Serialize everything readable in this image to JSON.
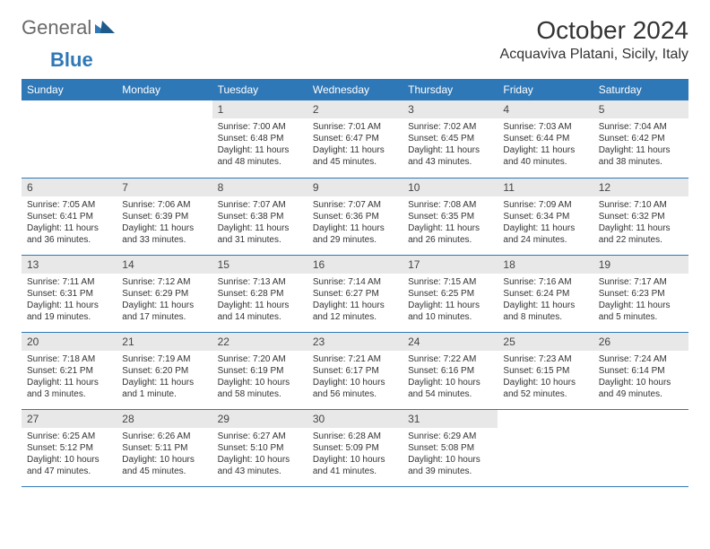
{
  "brand": {
    "part1": "General",
    "part2": "Blue"
  },
  "title": "October 2024",
  "location": "Acquaviva Platani, Sicily, Italy",
  "colors": {
    "header_bg": "#2f78b7",
    "header_text": "#ffffff",
    "daynum_bg": "#e8e8e8",
    "border": "#2f78b7",
    "text": "#333333",
    "logo_gray": "#6a6a6a",
    "logo_blue": "#2f78b7"
  },
  "weekdays": [
    "Sunday",
    "Monday",
    "Tuesday",
    "Wednesday",
    "Thursday",
    "Friday",
    "Saturday"
  ],
  "weeks": [
    [
      null,
      null,
      {
        "n": "1",
        "r": "Sunrise: 7:00 AM",
        "s": "Sunset: 6:48 PM",
        "d1": "Daylight: 11 hours",
        "d2": "and 48 minutes."
      },
      {
        "n": "2",
        "r": "Sunrise: 7:01 AM",
        "s": "Sunset: 6:47 PM",
        "d1": "Daylight: 11 hours",
        "d2": "and 45 minutes."
      },
      {
        "n": "3",
        "r": "Sunrise: 7:02 AM",
        "s": "Sunset: 6:45 PM",
        "d1": "Daylight: 11 hours",
        "d2": "and 43 minutes."
      },
      {
        "n": "4",
        "r": "Sunrise: 7:03 AM",
        "s": "Sunset: 6:44 PM",
        "d1": "Daylight: 11 hours",
        "d2": "and 40 minutes."
      },
      {
        "n": "5",
        "r": "Sunrise: 7:04 AM",
        "s": "Sunset: 6:42 PM",
        "d1": "Daylight: 11 hours",
        "d2": "and 38 minutes."
      }
    ],
    [
      {
        "n": "6",
        "r": "Sunrise: 7:05 AM",
        "s": "Sunset: 6:41 PM",
        "d1": "Daylight: 11 hours",
        "d2": "and 36 minutes."
      },
      {
        "n": "7",
        "r": "Sunrise: 7:06 AM",
        "s": "Sunset: 6:39 PM",
        "d1": "Daylight: 11 hours",
        "d2": "and 33 minutes."
      },
      {
        "n": "8",
        "r": "Sunrise: 7:07 AM",
        "s": "Sunset: 6:38 PM",
        "d1": "Daylight: 11 hours",
        "d2": "and 31 minutes."
      },
      {
        "n": "9",
        "r": "Sunrise: 7:07 AM",
        "s": "Sunset: 6:36 PM",
        "d1": "Daylight: 11 hours",
        "d2": "and 29 minutes."
      },
      {
        "n": "10",
        "r": "Sunrise: 7:08 AM",
        "s": "Sunset: 6:35 PM",
        "d1": "Daylight: 11 hours",
        "d2": "and 26 minutes."
      },
      {
        "n": "11",
        "r": "Sunrise: 7:09 AM",
        "s": "Sunset: 6:34 PM",
        "d1": "Daylight: 11 hours",
        "d2": "and 24 minutes."
      },
      {
        "n": "12",
        "r": "Sunrise: 7:10 AM",
        "s": "Sunset: 6:32 PM",
        "d1": "Daylight: 11 hours",
        "d2": "and 22 minutes."
      }
    ],
    [
      {
        "n": "13",
        "r": "Sunrise: 7:11 AM",
        "s": "Sunset: 6:31 PM",
        "d1": "Daylight: 11 hours",
        "d2": "and 19 minutes."
      },
      {
        "n": "14",
        "r": "Sunrise: 7:12 AM",
        "s": "Sunset: 6:29 PM",
        "d1": "Daylight: 11 hours",
        "d2": "and 17 minutes."
      },
      {
        "n": "15",
        "r": "Sunrise: 7:13 AM",
        "s": "Sunset: 6:28 PM",
        "d1": "Daylight: 11 hours",
        "d2": "and 14 minutes."
      },
      {
        "n": "16",
        "r": "Sunrise: 7:14 AM",
        "s": "Sunset: 6:27 PM",
        "d1": "Daylight: 11 hours",
        "d2": "and 12 minutes."
      },
      {
        "n": "17",
        "r": "Sunrise: 7:15 AM",
        "s": "Sunset: 6:25 PM",
        "d1": "Daylight: 11 hours",
        "d2": "and 10 minutes."
      },
      {
        "n": "18",
        "r": "Sunrise: 7:16 AM",
        "s": "Sunset: 6:24 PM",
        "d1": "Daylight: 11 hours",
        "d2": "and 8 minutes."
      },
      {
        "n": "19",
        "r": "Sunrise: 7:17 AM",
        "s": "Sunset: 6:23 PM",
        "d1": "Daylight: 11 hours",
        "d2": "and 5 minutes."
      }
    ],
    [
      {
        "n": "20",
        "r": "Sunrise: 7:18 AM",
        "s": "Sunset: 6:21 PM",
        "d1": "Daylight: 11 hours",
        "d2": "and 3 minutes."
      },
      {
        "n": "21",
        "r": "Sunrise: 7:19 AM",
        "s": "Sunset: 6:20 PM",
        "d1": "Daylight: 11 hours",
        "d2": "and 1 minute."
      },
      {
        "n": "22",
        "r": "Sunrise: 7:20 AM",
        "s": "Sunset: 6:19 PM",
        "d1": "Daylight: 10 hours",
        "d2": "and 58 minutes."
      },
      {
        "n": "23",
        "r": "Sunrise: 7:21 AM",
        "s": "Sunset: 6:17 PM",
        "d1": "Daylight: 10 hours",
        "d2": "and 56 minutes."
      },
      {
        "n": "24",
        "r": "Sunrise: 7:22 AM",
        "s": "Sunset: 6:16 PM",
        "d1": "Daylight: 10 hours",
        "d2": "and 54 minutes."
      },
      {
        "n": "25",
        "r": "Sunrise: 7:23 AM",
        "s": "Sunset: 6:15 PM",
        "d1": "Daylight: 10 hours",
        "d2": "and 52 minutes."
      },
      {
        "n": "26",
        "r": "Sunrise: 7:24 AM",
        "s": "Sunset: 6:14 PM",
        "d1": "Daylight: 10 hours",
        "d2": "and 49 minutes."
      }
    ],
    [
      {
        "n": "27",
        "r": "Sunrise: 6:25 AM",
        "s": "Sunset: 5:12 PM",
        "d1": "Daylight: 10 hours",
        "d2": "and 47 minutes."
      },
      {
        "n": "28",
        "r": "Sunrise: 6:26 AM",
        "s": "Sunset: 5:11 PM",
        "d1": "Daylight: 10 hours",
        "d2": "and 45 minutes."
      },
      {
        "n": "29",
        "r": "Sunrise: 6:27 AM",
        "s": "Sunset: 5:10 PM",
        "d1": "Daylight: 10 hours",
        "d2": "and 43 minutes."
      },
      {
        "n": "30",
        "r": "Sunrise: 6:28 AM",
        "s": "Sunset: 5:09 PM",
        "d1": "Daylight: 10 hours",
        "d2": "and 41 minutes."
      },
      {
        "n": "31",
        "r": "Sunrise: 6:29 AM",
        "s": "Sunset: 5:08 PM",
        "d1": "Daylight: 10 hours",
        "d2": "and 39 minutes."
      },
      null,
      null
    ]
  ]
}
